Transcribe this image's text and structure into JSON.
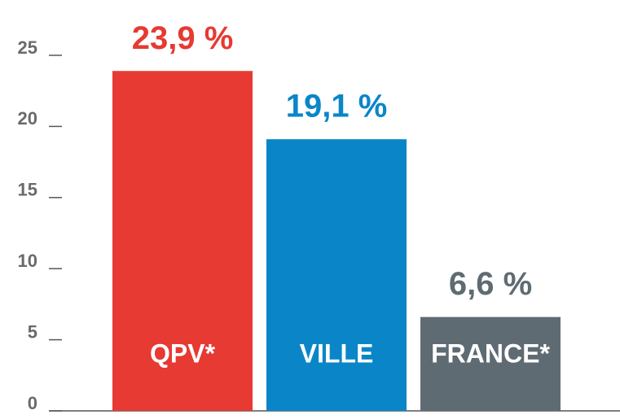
{
  "chart_data": {
    "type": "bar",
    "categories": [
      "QPV*",
      "VILLE",
      "FRANCE*"
    ],
    "values": [
      23.9,
      19.1,
      6.6
    ],
    "value_labels": [
      "23,9 %",
      "19,1 %",
      "6,6 %"
    ],
    "colors": [
      "#e63a33",
      "#0a86c8",
      "#5f6b73"
    ],
    "ylim": [
      0,
      25
    ],
    "yticks": [
      0,
      5,
      10,
      15,
      20,
      25
    ]
  }
}
